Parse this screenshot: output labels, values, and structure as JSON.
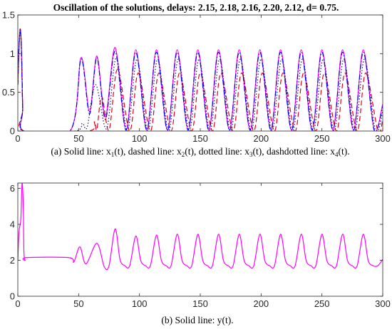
{
  "chart_data": [
    {
      "type": "line",
      "title": "Oscillation of the solutions, delays: 2.15, 2.18, 2.16, 2.20, 2.12, d= 0.75.",
      "caption": {
        "lead": "(a) Solid line: x",
        "sub1": "1",
        "mid1": "(t), dashed line: x",
        "sub2": "2",
        "mid2": "(t), dotted line: x",
        "sub3": "3",
        "mid3": "(t), dashdotted line: x",
        "sub4": "4",
        "tail": "(t)."
      },
      "xlim": [
        0,
        300
      ],
      "ylim": [
        0,
        1.5
      ],
      "xticks": [
        "0",
        "50",
        "100",
        "150",
        "200",
        "250",
        "300"
      ],
      "yticks": [
        "0",
        "0.5",
        "1",
        "1.5"
      ],
      "period": 17,
      "series": [
        {
          "line": "solid",
          "color": "#ff00ff",
          "initial": [
            [
              0,
              0.6
            ],
            [
              1,
              1.1
            ],
            [
              2,
              1.32
            ],
            [
              3,
              1.05
            ],
            [
              4,
              0.3
            ],
            [
              5,
              0
            ]
          ],
          "onset": 43,
          "peaks": [
            [
              52,
              0.95
            ],
            [
              65,
              0.97
            ],
            [
              80,
              1.08
            ],
            [
              97,
              1.05
            ],
            [
              114,
              1.05
            ],
            [
              131,
              1.05
            ],
            [
              148,
              1.05
            ],
            [
              165,
              1.05
            ],
            [
              182,
              1.05
            ],
            [
              199,
              1.05
            ],
            [
              216,
              1.05
            ],
            [
              233,
              1.05
            ],
            [
              250,
              1.05
            ],
            [
              267,
              1.05
            ],
            [
              284,
              1.05
            ]
          ],
          "troughs": [
            [
              59,
              0.25
            ],
            [
              72,
              0.18
            ],
            [
              89,
              0.01
            ],
            [
              106,
              0.01
            ],
            [
              123,
              0.01
            ],
            [
              140,
              0.01
            ],
            [
              157,
              0.01
            ],
            [
              174,
              0.01
            ],
            [
              191,
              0.01
            ],
            [
              208,
              0.01
            ],
            [
              225,
              0.01
            ],
            [
              242,
              0.01
            ],
            [
              259,
              0.01
            ],
            [
              276,
              0.01
            ],
            [
              293,
              0.01
            ]
          ],
          "end": [
            300,
            0.35
          ]
        },
        {
          "line": "dashed",
          "color": "#e0001a",
          "initial": [
            [
              0,
              0.6
            ],
            [
              1,
              1.1
            ],
            [
              2,
              1.32
            ],
            [
              3,
              1.05
            ],
            [
              4,
              0.3
            ],
            [
              5,
              0
            ]
          ],
          "onset": 58,
          "peaks": [
            [
              63,
              0.12
            ],
            [
              69,
              0.45
            ],
            [
              82,
              0.8
            ],
            [
              99,
              0.75
            ],
            [
              116,
              0.75
            ],
            [
              133,
              0.75
            ],
            [
              150,
              0.75
            ],
            [
              167,
              0.75
            ],
            [
              184,
              0.75
            ],
            [
              201,
              0.75
            ],
            [
              218,
              0.75
            ],
            [
              235,
              0.75
            ],
            [
              252,
              0.75
            ],
            [
              269,
              0.75
            ],
            [
              286,
              0.75
            ]
          ],
          "troughs": [
            [
              65,
              0.02
            ],
            [
              75,
              0.01
            ],
            [
              92,
              0.0
            ],
            [
              109,
              0.0
            ],
            [
              126,
              0.0
            ],
            [
              143,
              0.0
            ],
            [
              160,
              0.0
            ],
            [
              177,
              0.0
            ],
            [
              194,
              0.0
            ],
            [
              211,
              0.0
            ],
            [
              228,
              0.0
            ],
            [
              245,
              0.0
            ],
            [
              262,
              0.0
            ],
            [
              279,
              0.0
            ],
            [
              296,
              0.0
            ]
          ],
          "end": [
            300,
            0.15
          ]
        },
        {
          "line": "dotted",
          "color": "#1a1a66",
          "initial": [
            [
              0,
              0.6
            ],
            [
              1,
              1.1
            ],
            [
              2,
              1.32
            ],
            [
              3,
              1.05
            ],
            [
              4,
              0.3
            ],
            [
              5,
              0
            ]
          ],
          "onset": 47,
          "peaks": [
            [
              53,
              0.1
            ],
            [
              64,
              0.6
            ],
            [
              81,
              0.95
            ],
            [
              98,
              0.93
            ],
            [
              115,
              0.93
            ],
            [
              132,
              0.93
            ],
            [
              149,
              0.93
            ],
            [
              166,
              0.93
            ],
            [
              183,
              0.93
            ],
            [
              200,
              0.93
            ],
            [
              217,
              0.93
            ],
            [
              234,
              0.93
            ],
            [
              251,
              0.93
            ],
            [
              268,
              0.93
            ],
            [
              285,
              0.93
            ]
          ],
          "troughs": [
            [
              57,
              0.05
            ],
            [
              73,
              0.03
            ],
            [
              90,
              0.0
            ],
            [
              107,
              0.0
            ],
            [
              124,
              0.0
            ],
            [
              141,
              0.0
            ],
            [
              158,
              0.0
            ],
            [
              175,
              0.0
            ],
            [
              192,
              0.0
            ],
            [
              209,
              0.0
            ],
            [
              226,
              0.0
            ],
            [
              243,
              0.0
            ],
            [
              260,
              0.0
            ],
            [
              277,
              0.0
            ],
            [
              294,
              0.0
            ]
          ],
          "end": [
            300,
            0.25
          ]
        },
        {
          "line": "dashdot",
          "color": "#0000ff",
          "initial": [
            [
              0,
              0.6
            ],
            [
              1,
              1.1
            ],
            [
              2,
              1.28
            ],
            [
              3,
              1.05
            ],
            [
              4,
              0.3
            ],
            [
              5,
              0
            ]
          ],
          "onset": 43,
          "peaks": [
            [
              52,
              0.93
            ],
            [
              65,
              0.95
            ],
            [
              80,
              1.03
            ],
            [
              97,
              1.02
            ],
            [
              114,
              1.02
            ],
            [
              131,
              1.02
            ],
            [
              148,
              1.02
            ],
            [
              165,
              1.02
            ],
            [
              182,
              1.02
            ],
            [
              199,
              1.02
            ],
            [
              216,
              1.02
            ],
            [
              233,
              1.02
            ],
            [
              250,
              1.02
            ],
            [
              267,
              1.02
            ],
            [
              284,
              1.02
            ]
          ],
          "troughs": [
            [
              59,
              0.22
            ],
            [
              72,
              0.15
            ],
            [
              89,
              0.01
            ],
            [
              106,
              0.01
            ],
            [
              123,
              0.01
            ],
            [
              140,
              0.01
            ],
            [
              157,
              0.01
            ],
            [
              174,
              0.01
            ],
            [
              191,
              0.01
            ],
            [
              208,
              0.01
            ],
            [
              225,
              0.01
            ],
            [
              242,
              0.01
            ],
            [
              259,
              0.01
            ],
            [
              276,
              0.01
            ],
            [
              293,
              0.01
            ]
          ],
          "end": [
            300,
            0.32
          ]
        }
      ]
    },
    {
      "type": "line",
      "caption": "(b) Solid line: y(t).",
      "xlim": [
        0,
        300
      ],
      "ylim": [
        0,
        6.3
      ],
      "xticks": [
        "0",
        "50",
        "100",
        "150",
        "200",
        "250",
        "300"
      ],
      "yticks": [
        "0",
        "2",
        "4",
        "6"
      ],
      "series": [
        {
          "line": "solid",
          "color": "#ff00ff",
          "initial": [
            [
              0,
              2.0
            ],
            [
              1,
              3.6
            ],
            [
              2.5,
              4.3
            ],
            [
              3.5,
              6.3
            ],
            [
              4.5,
              5.0
            ],
            [
              5,
              2.5
            ],
            [
              6,
              2.0
            ],
            [
              7,
              2.15
            ],
            [
              42,
              2.15
            ],
            [
              46,
              1.9
            ]
          ],
          "peaks": [
            [
              51,
              2.75
            ],
            [
              65,
              2.95
            ],
            [
              80,
              3.75
            ],
            [
              84,
              2.05
            ],
            [
              97,
              3.35
            ],
            [
              101,
              2.0
            ],
            [
              114,
              3.4
            ],
            [
              118,
              2.0
            ],
            [
              131,
              3.45
            ],
            [
              135,
              2.0
            ],
            [
              148,
              3.45
            ],
            [
              152,
              2.0
            ],
            [
              165,
              3.45
            ],
            [
              169,
              2.0
            ],
            [
              182,
              3.45
            ],
            [
              186,
              2.0
            ],
            [
              199,
              3.45
            ],
            [
              203,
              2.0
            ],
            [
              216,
              3.45
            ],
            [
              220,
              2.0
            ],
            [
              233,
              3.45
            ],
            [
              237,
              2.0
            ],
            [
              250,
              3.45
            ],
            [
              254,
              2.0
            ],
            [
              267,
              3.45
            ],
            [
              271,
              2.0
            ],
            [
              284,
              3.45
            ],
            [
              288,
              2.0
            ]
          ],
          "troughs": [
            [
              56,
              1.8
            ],
            [
              71,
              1.65
            ],
            [
              75,
              1.7
            ],
            [
              88,
              1.7
            ],
            [
              92,
              1.7
            ],
            [
              105,
              1.7
            ],
            [
              109,
              1.7
            ],
            [
              122,
              1.7
            ],
            [
              126,
              1.7
            ],
            [
              139,
              1.7
            ],
            [
              143,
              1.7
            ],
            [
              156,
              1.7
            ],
            [
              160,
              1.7
            ],
            [
              173,
              1.7
            ],
            [
              177,
              1.7
            ],
            [
              190,
              1.7
            ],
            [
              194,
              1.7
            ],
            [
              207,
              1.7
            ],
            [
              211,
              1.7
            ],
            [
              224,
              1.7
            ],
            [
              228,
              1.7
            ],
            [
              241,
              1.7
            ],
            [
              245,
              1.7
            ],
            [
              258,
              1.7
            ],
            [
              262,
              1.7
            ],
            [
              275,
              1.7
            ],
            [
              279,
              1.7
            ],
            [
              292,
              1.7
            ],
            [
              296,
              1.7
            ]
          ],
          "end": [
            300,
            2.05
          ]
        }
      ]
    }
  ]
}
